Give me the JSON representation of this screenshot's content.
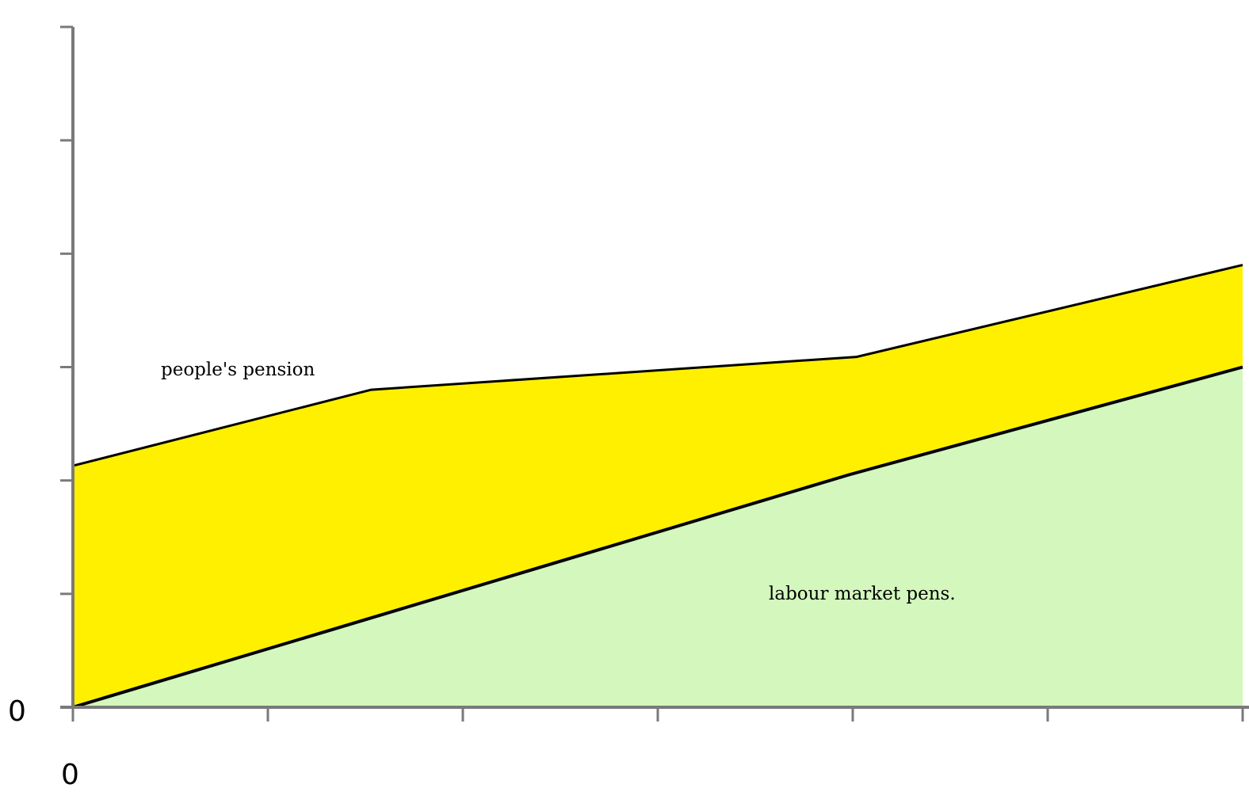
{
  "chart_data": {
    "type": "area",
    "stacked": true,
    "x": [
      0,
      1,
      2,
      3,
      4,
      5,
      6
    ],
    "xlim": [
      0,
      6
    ],
    "ylim": [
      0,
      6
    ],
    "x_tick_count": 7,
    "y_tick_count": 7,
    "x_tick_labels": [
      "0"
    ],
    "y_tick_labels": [
      "0"
    ],
    "series": [
      {
        "name": "labour market pens.",
        "color": "#d3f7bd",
        "points": [
          [
            0,
            0
          ],
          [
            3.98,
            2.05
          ],
          [
            6,
            3.0
          ]
        ]
      },
      {
        "name": "people's pension",
        "color": "#fff000",
        "points": [
          [
            0,
            2.13
          ],
          [
            1.53,
            2.8
          ],
          [
            4.02,
            3.09
          ],
          [
            6,
            3.9
          ]
        ]
      }
    ],
    "grid": false,
    "legend": "none"
  }
}
